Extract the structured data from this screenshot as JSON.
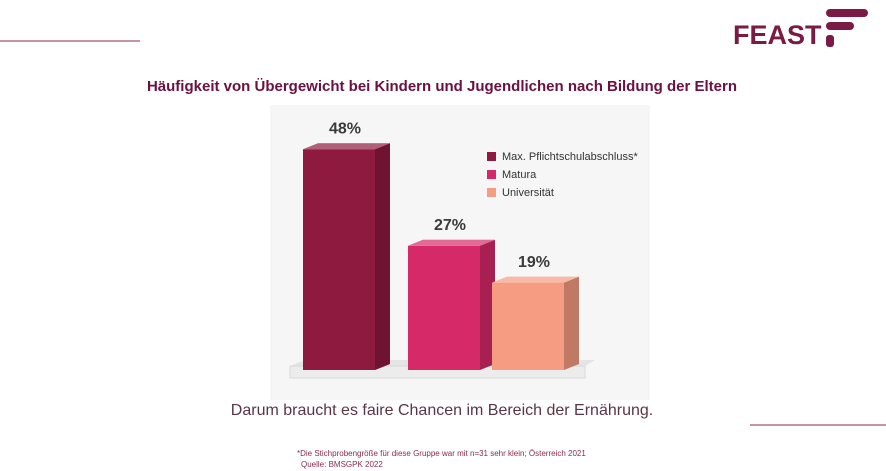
{
  "logo": "FEAST",
  "chart_data": {
    "type": "bar3d",
    "title": "Häufigkeit von Übergewicht bei Kindern und Jugendlichen nach Bildung der Eltern",
    "categories": [
      null
    ],
    "series": [
      {
        "name": "Max. Pflichtschulabschluss*",
        "color": "#8e1a40",
        "values": [
          48
        ],
        "value_labels": [
          "48%"
        ]
      },
      {
        "name": "Matura",
        "color": "#d62a68",
        "values": [
          27
        ],
        "value_labels": [
          "27%"
        ]
      },
      {
        "name": "Universität",
        "color": "#f59c82",
        "values": [
          19
        ],
        "value_labels": [
          "19%"
        ]
      }
    ],
    "subtitle": "Darum braucht es faire Chancen im Bereich der Ernährung.",
    "footnotes": [
      "*Die Stichprobengröße für diese Gruppe war mit n=31 sehr klein; Österreich 2021",
      "Quelle: BMSGPK  2022"
    ]
  }
}
